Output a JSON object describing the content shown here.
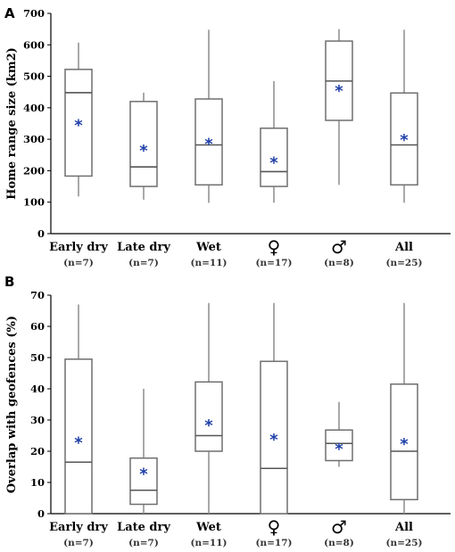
{
  "chart_data": [
    {
      "panel": "A",
      "type": "boxplot",
      "ylabel": "Home range size (km2)",
      "ylim": [
        0,
        700
      ],
      "yticks": [
        0,
        100,
        200,
        300,
        400,
        500,
        600,
        700
      ],
      "grid": false,
      "categories": [
        "Early dry",
        "Late dry",
        "Wet",
        "♀",
        "♂",
        "All"
      ],
      "n_labels": [
        "(n=7)",
        "(n=7)",
        "(n=11)",
        "(n=17)",
        "(n=8)",
        "(n=25)"
      ],
      "mean_marker": "*",
      "boxes": [
        {
          "min": 118,
          "q1": 183,
          "median": 448,
          "q3": 522,
          "max": 607,
          "mean": 362
        },
        {
          "min": 108,
          "q1": 150,
          "median": 212,
          "q3": 420,
          "max": 448,
          "mean": 280
        },
        {
          "min": 98,
          "q1": 155,
          "median": 282,
          "q3": 428,
          "max": 648,
          "mean": 302
        },
        {
          "min": 98,
          "q1": 150,
          "median": 197,
          "q3": 335,
          "max": 485,
          "mean": 242
        },
        {
          "min": 155,
          "q1": 360,
          "median": 485,
          "q3": 612,
          "max": 650,
          "mean": 470
        },
        {
          "min": 98,
          "q1": 155,
          "median": 282,
          "q3": 447,
          "max": 648,
          "mean": 315
        }
      ]
    },
    {
      "panel": "B",
      "type": "boxplot",
      "ylabel": "Overlap with geofences (%)",
      "ylim": [
        0,
        70
      ],
      "yticks": [
        0,
        10,
        20,
        30,
        40,
        50,
        60,
        70
      ],
      "grid": false,
      "categories": [
        "Early dry",
        "Late dry",
        "Wet",
        "♀",
        "♂",
        "All"
      ],
      "n_labels": [
        "(n=7)",
        "(n=7)",
        "(n=11)",
        "(n=17)",
        "(n=8)",
        "(n=25)"
      ],
      "mean_marker": "*",
      "boxes": [
        {
          "min": 0,
          "q1": 0,
          "median": 16.5,
          "q3": 49.5,
          "max": 67,
          "mean": 24.5
        },
        {
          "min": 0,
          "q1": 3,
          "median": 7.5,
          "q3": 17.8,
          "max": 40,
          "mean": 14.5
        },
        {
          "min": 0,
          "q1": 20,
          "median": 25,
          "q3": 42.2,
          "max": 67.5,
          "mean": 30
        },
        {
          "min": 0,
          "q1": 0,
          "median": 14.5,
          "q3": 48.8,
          "max": 67.5,
          "mean": 25.5
        },
        {
          "min": 15,
          "q1": 17,
          "median": 22.5,
          "q3": 26.8,
          "max": 35.8,
          "mean": 22.5
        },
        {
          "min": 0,
          "q1": 4.5,
          "median": 20,
          "q3": 41.5,
          "max": 67.5,
          "mean": 24
        }
      ]
    }
  ]
}
